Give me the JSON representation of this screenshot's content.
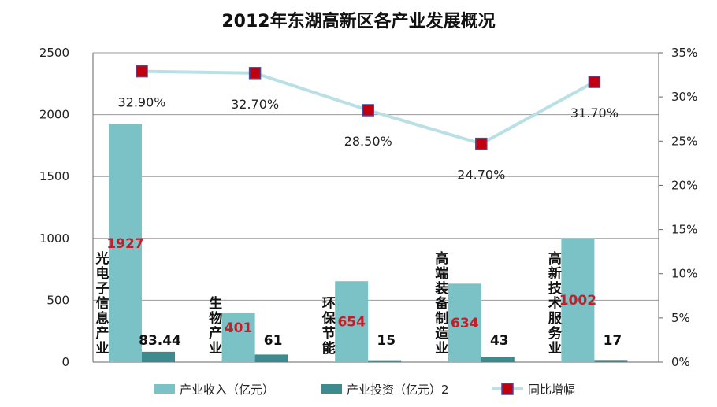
{
  "chart_data": {
    "type": "bar",
    "title": "2012年东湖高新区各产业发展概况",
    "categories": [
      "光电子信息产业",
      "生物产业",
      "环保节能",
      "高端装备制造业",
      "高新技术服务业"
    ],
    "series": [
      {
        "name": "产业收入（亿元）",
        "type": "bar",
        "axis": "left",
        "values": [
          1927,
          401,
          654,
          634,
          1002
        ],
        "value_labels": [
          "1927",
          "401",
          "654",
          "634",
          "1002"
        ]
      },
      {
        "name": "产业投资（亿元）2",
        "type": "bar",
        "axis": "left",
        "values": [
          83.44,
          61,
          15,
          43,
          17
        ],
        "value_labels": [
          "83.44",
          "61",
          "15",
          "43",
          "17"
        ]
      },
      {
        "name": "同比增幅",
        "type": "line",
        "axis": "right",
        "values": [
          32.9,
          32.7,
          28.5,
          24.7,
          31.7
        ],
        "value_labels": [
          "32.90%",
          "32.70%",
          "28.50%",
          "24.70%",
          "31.70%"
        ]
      }
    ],
    "left_axis": {
      "min": 0,
      "max": 2500,
      "ticks": [
        "0",
        "500",
        "1000",
        "1500",
        "2000",
        "2500"
      ]
    },
    "right_axis": {
      "min": 0,
      "max": 35,
      "ticks": [
        "0%",
        "5%",
        "10%",
        "15%",
        "20%",
        "25%",
        "30%",
        "35%"
      ]
    },
    "grid": true,
    "legend_position": "bottom",
    "colors": {
      "revenue": "#7bc2c7",
      "investment": "#3d8b8f",
      "line": "#b9e0e4",
      "marker": "#c0000f",
      "marker_border": "#4a4a9a",
      "revenue_label": "#c0202a"
    }
  }
}
